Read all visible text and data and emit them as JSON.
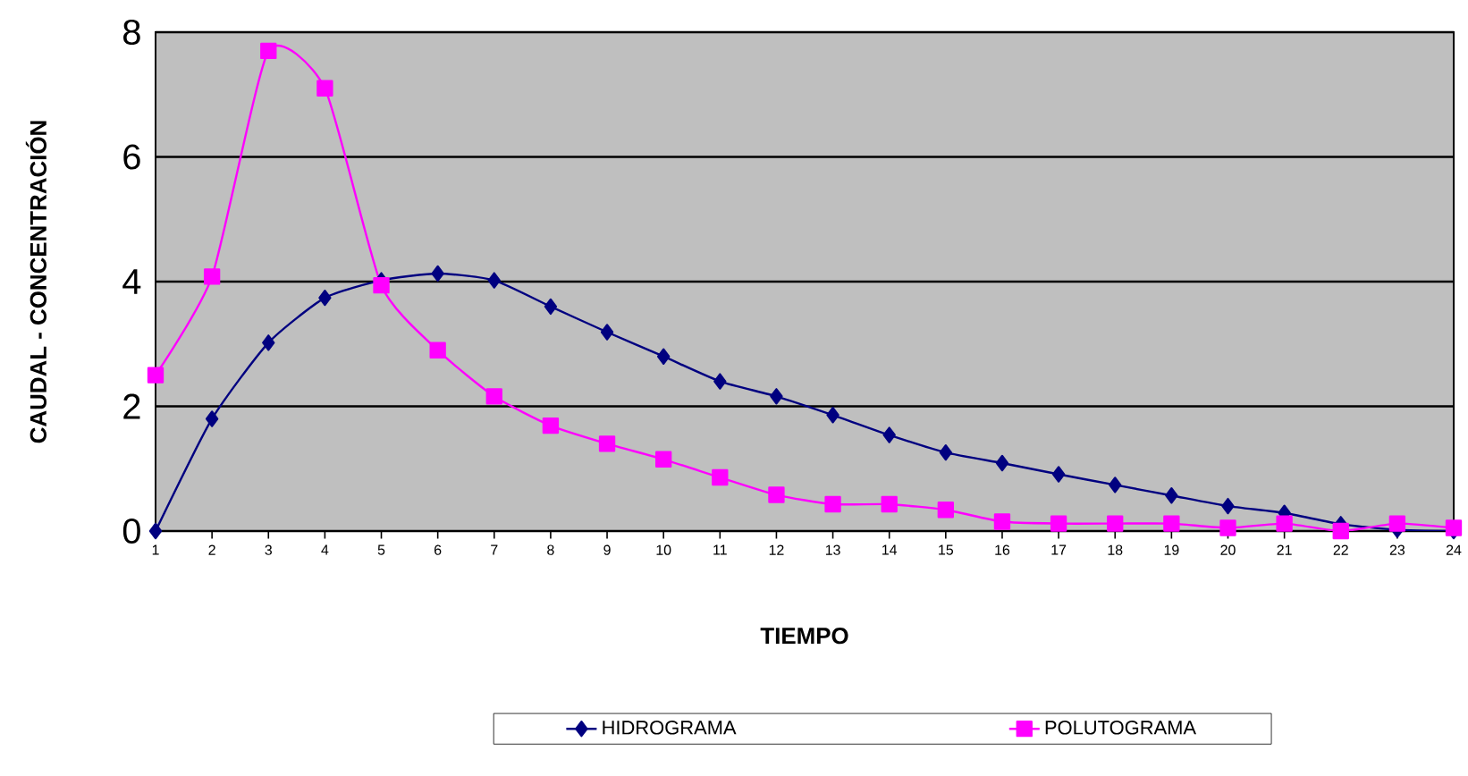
{
  "chart_data": {
    "type": "line",
    "xlabel": "TIEMPO",
    "ylabel": "CAUDAL - CONCENTRACIÓN",
    "categories": [
      "1",
      "2",
      "3",
      "4",
      "5",
      "6",
      "7",
      "8",
      "9",
      "10",
      "11",
      "12",
      "13",
      "14",
      "15",
      "16",
      "17",
      "18",
      "19",
      "20",
      "21",
      "22",
      "23",
      "24"
    ],
    "series": [
      {
        "name": "HIDROGRAMA",
        "color": "#000080",
        "marker": "diamond",
        "values": [
          0,
          1.8,
          3.02,
          3.74,
          4.02,
          4.13,
          4.02,
          3.6,
          3.19,
          2.8,
          2.4,
          2.16,
          1.86,
          1.54,
          1.26,
          1.09,
          0.91,
          0.74,
          0.57,
          0.4,
          0.29,
          0.11,
          0.02,
          0
        ]
      },
      {
        "name": "POLUTOGRAMA",
        "color": "#ff00ff",
        "marker": "square",
        "values": [
          2.5,
          4.08,
          7.7,
          7.1,
          3.94,
          2.9,
          2.16,
          1.69,
          1.4,
          1.15,
          0.86,
          0.58,
          0.43,
          0.43,
          0.34,
          0.15,
          0.12,
          0.12,
          0.12,
          0.05,
          0.12,
          0,
          0.12,
          0.05
        ]
      }
    ],
    "ylim": [
      0,
      8
    ],
    "yticks": [
      0,
      2,
      4,
      6,
      8
    ],
    "grid": "y",
    "legend": "bottom",
    "line_style": "solid"
  }
}
